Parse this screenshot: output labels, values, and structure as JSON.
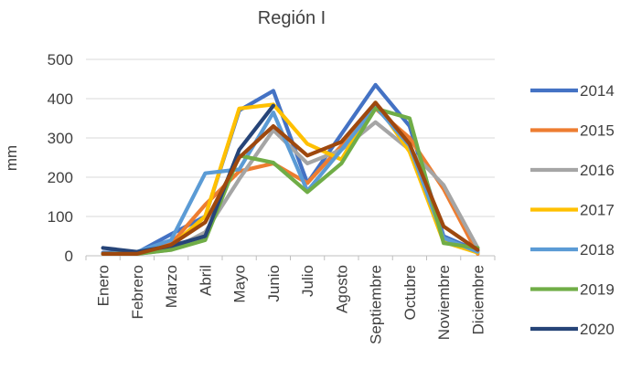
{
  "chart_data": {
    "type": "line",
    "title": "Región I",
    "xlabel": "",
    "ylabel": "mm",
    "ylim": [
      0,
      500
    ],
    "yticks": [
      0,
      100,
      200,
      300,
      400,
      500
    ],
    "grid": true,
    "legend": "right",
    "categories": [
      "Enero",
      "Febrero",
      "Marzo",
      "Abril",
      "Mayo",
      "Junio",
      "Julio",
      "Agosto",
      "Septiembre",
      "Octubre",
      "Noviembre",
      "Diciembre"
    ],
    "series": [
      {
        "name": "2014",
        "color": "#4472C4",
        "values": [
          8,
          8,
          55,
          100,
          370,
          420,
          185,
          310,
          435,
          330,
          50,
          12
        ]
      },
      {
        "name": "2015",
        "color": "#ED7D31",
        "values": [
          5,
          5,
          30,
          130,
          215,
          235,
          185,
          280,
          375,
          300,
          170,
          5
        ]
      },
      {
        "name": "2016",
        "color": "#A5A5A5",
        "values": [
          5,
          5,
          15,
          60,
          195,
          320,
          235,
          270,
          340,
          270,
          180,
          20
        ]
      },
      {
        "name": "2017",
        "color": "#FFC000",
        "values": [
          5,
          5,
          25,
          100,
          375,
          385,
          285,
          245,
          390,
          265,
          35,
          8
        ]
      },
      {
        "name": "2018",
        "color": "#5B9BD5",
        "values": [
          5,
          10,
          40,
          210,
          220,
          365,
          165,
          270,
          380,
          280,
          45,
          10
        ]
      },
      {
        "name": "2019",
        "color": "#70AD47",
        "values": [
          5,
          5,
          15,
          40,
          255,
          237,
          162,
          235,
          375,
          350,
          32,
          20
        ]
      },
      {
        "name": "2020",
        "color": "#264478",
        "values": [
          20,
          10,
          25,
          50,
          270,
          382,
          null,
          null,
          null,
          null,
          null,
          null
        ]
      },
      {
        "name": "",
        "color": "#9E480E",
        "values": [
          5,
          5,
          28,
          85,
          250,
          330,
          255,
          290,
          390,
          285,
          75,
          15
        ]
      }
    ]
  }
}
